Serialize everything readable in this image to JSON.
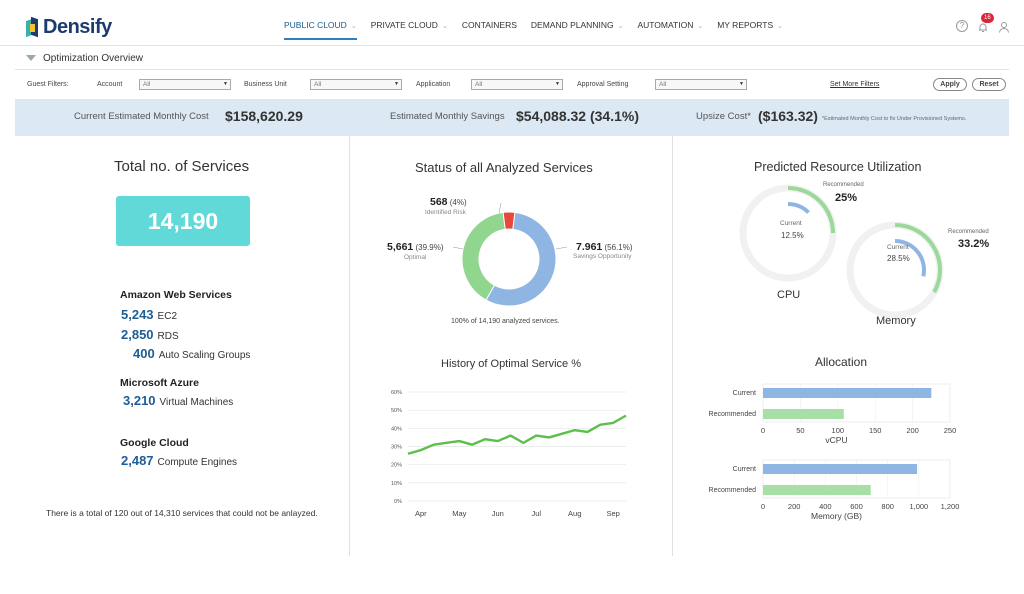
{
  "brand": {
    "name": "Densify"
  },
  "nav": [
    {
      "label": "PUBLIC CLOUD",
      "chevron": true,
      "active": true
    },
    {
      "label": "PRIVATE CLOUD",
      "chevron": true,
      "active": false
    },
    {
      "label": "CONTAINERS",
      "chevron": false,
      "active": false
    },
    {
      "label": "DEMAND PLANNING",
      "chevron": true,
      "active": false
    },
    {
      "label": "AUTOMATION",
      "chevron": true,
      "active": false
    },
    {
      "label": "MY REPORTS",
      "chevron": true,
      "active": false
    }
  ],
  "notifications": {
    "count": "16"
  },
  "subbar": {
    "title": "Optimization Overview"
  },
  "filters": {
    "guest_label": "Guest Filters:",
    "account_label": "Account",
    "account_value": "All",
    "bu_label": "Business Unit",
    "bu_value": "All",
    "app_label": "Application",
    "app_value": "All",
    "approval_label": "Approval Setting",
    "approval_value": "All",
    "more_link": "Set More Filters",
    "apply": "Apply",
    "reset": "Reset"
  },
  "costs": {
    "monthly_label": "Current Estimated Monthly Cost",
    "monthly_value": "$158,620.29",
    "savings_label": "Estimated Monthly Savings",
    "savings_value": "$54,088.32 (34.1%)",
    "upsize_label": "Upsize Cost*",
    "upsize_value": "($163.32)",
    "upsize_note": "*Estimated Monthly Cost to fix Under Provisioned Systems."
  },
  "services": {
    "title": "Total no. of Services",
    "total": "14,190",
    "providers": [
      {
        "name": "Amazon Web Services",
        "items": [
          {
            "count": "5,243",
            "label": "EC2"
          },
          {
            "count": "2,850",
            "label": "RDS"
          },
          {
            "count": "400",
            "label": "Auto Scaling Groups"
          }
        ]
      },
      {
        "name": "Microsoft Azure",
        "items": [
          {
            "count": "3,210",
            "label": "Virtual Machines"
          }
        ]
      },
      {
        "name": "Google Cloud",
        "items": [
          {
            "count": "2,487",
            "label": "Compute Engines"
          }
        ]
      }
    ],
    "footnote": "There is a total of 120 out of 14,310 services that could not be anlayzed."
  },
  "status": {
    "title": "Status of all Analyzed Services",
    "risk_count": "568",
    "risk_pct": "(4%)",
    "risk_label": "Identified Risk",
    "optimal_count": "5,661",
    "optimal_pct": "(39.9%)",
    "optimal_label": "Optimal",
    "savings_count": "7.961",
    "savings_pct": "(56.1%)",
    "savings_label": "Savings Opportunity",
    "caption": "100% of 14,190 analyzed services."
  },
  "history": {
    "title": "History of Optimal Service %"
  },
  "utilization": {
    "title": "Predicted Resource Utilization",
    "cpu": {
      "name": "CPU",
      "recommended_label": "Recommended",
      "recommended_value": "25%",
      "current_label": "Current",
      "current_value": "12.5%"
    },
    "memory": {
      "name": "Memory",
      "recommended_label": "Recommended",
      "recommended_value": "33.2%",
      "current_label": "Current",
      "current_value": "28.5%"
    }
  },
  "allocation": {
    "title": "Allocation"
  },
  "colors": {
    "accent": "#2d7fc1",
    "blue": "#8fb6e3",
    "green": "#90d68f",
    "red": "#e8473c",
    "teal": "#62d9d9",
    "cost_bar": "#dce8f3"
  },
  "chart_data": [
    {
      "type": "pie",
      "categories": [
        "Identified Risk",
        "Optimal",
        "Savings Opportunity"
      ],
      "values": [
        568,
        5661,
        7961
      ],
      "title": "Status of all Analyzed Services"
    },
    {
      "type": "line",
      "title": "History of Optimal Service %",
      "x": [
        "Mar 15",
        "Apr 1",
        "Apr 10",
        "Apr 20",
        "May 1",
        "May 10",
        "May 20",
        "Jun 1",
        "Jun 10",
        "Jun 20",
        "Jul 1",
        "Jul 10",
        "Jul 20",
        "Aug 1",
        "Aug 10",
        "Aug 20",
        "Sep 1",
        "Sep 10"
      ],
      "xticks": [
        "Apr",
        "May",
        "Jun",
        "Jul",
        "Aug",
        "Sep"
      ],
      "series": [
        {
          "values": [
            26,
            28,
            31,
            32,
            33,
            31,
            34,
            33,
            36,
            32,
            36,
            35,
            37,
            39,
            38,
            42,
            43,
            47
          ]
        }
      ],
      "yticks": [
        "0%",
        "10%",
        "20%",
        "30%",
        "40%",
        "50%",
        "60%"
      ],
      "ylim": [
        0,
        60
      ]
    },
    {
      "type": "bar",
      "title": "Allocation",
      "categories": [
        "Current",
        "Recommended"
      ],
      "values": [
        225,
        108
      ],
      "xlabel": "vCPU",
      "xticks": [
        "0",
        "50",
        "100",
        "150",
        "200",
        "250"
      ],
      "xlim": [
        0,
        250
      ]
    },
    {
      "type": "bar",
      "categories": [
        "Current",
        "Recommended"
      ],
      "values": [
        1030,
        720
      ],
      "xlabel": "Memory (GB)",
      "xticks": [
        "0",
        "200",
        "400",
        "600",
        "800",
        "1,000",
        "1,200"
      ],
      "xlim": [
        0,
        1250
      ]
    }
  ]
}
